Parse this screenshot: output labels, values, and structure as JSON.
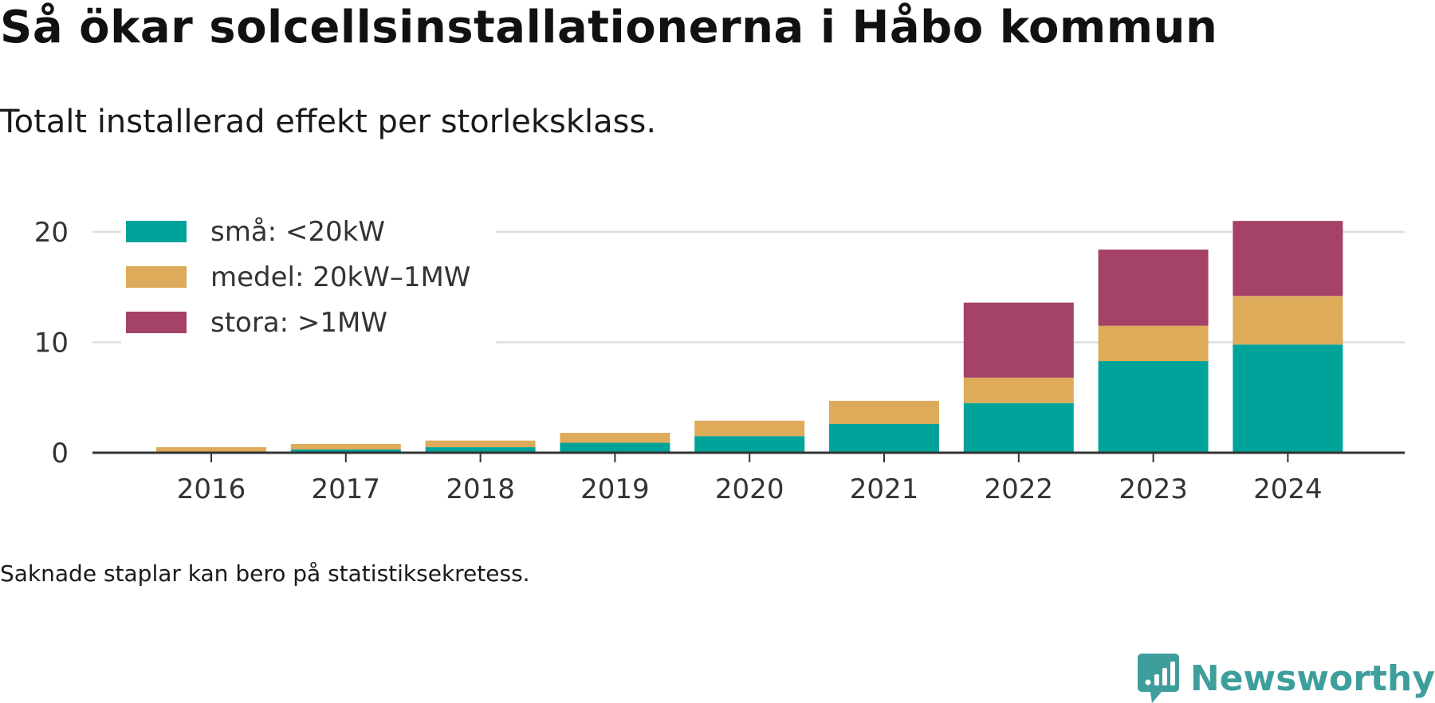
{
  "title": "Så ökar solcellsinstallationerna i Håbo kommun",
  "subtitle": "Totalt installerad effekt per storleksklass.",
  "footnote": "Saknade staplar kan bero på statistiksekretess.",
  "brand": {
    "name": "Newsworthy",
    "icon": "newsworthy-logo-icon",
    "color": "#3e9e9c"
  },
  "chart_data": {
    "type": "bar",
    "stacked": true,
    "categories": [
      "2016",
      "2017",
      "2018",
      "2019",
      "2020",
      "2021",
      "2022",
      "2023",
      "2024"
    ],
    "series": [
      {
        "name": "små: <20kW",
        "color": "#00a39a",
        "values": [
          0.1,
          0.3,
          0.5,
          0.9,
          1.5,
          2.6,
          4.5,
          8.3,
          9.8
        ]
      },
      {
        "name": "medel: 20kW–1MW",
        "color": "#ddab59",
        "values": [
          0.4,
          0.5,
          0.6,
          0.9,
          1.4,
          2.1,
          2.3,
          3.2,
          4.4
        ]
      },
      {
        "name": "stora: >1MW",
        "color": "#a44267",
        "values": [
          0,
          0,
          0,
          0,
          0,
          0,
          6.8,
          6.9,
          6.8
        ]
      }
    ],
    "yticks": [
      0,
      10,
      20
    ],
    "ylim": [
      0,
      22
    ],
    "xlabel": "",
    "ylabel": "",
    "grid": true,
    "legend_position": "top-left"
  }
}
